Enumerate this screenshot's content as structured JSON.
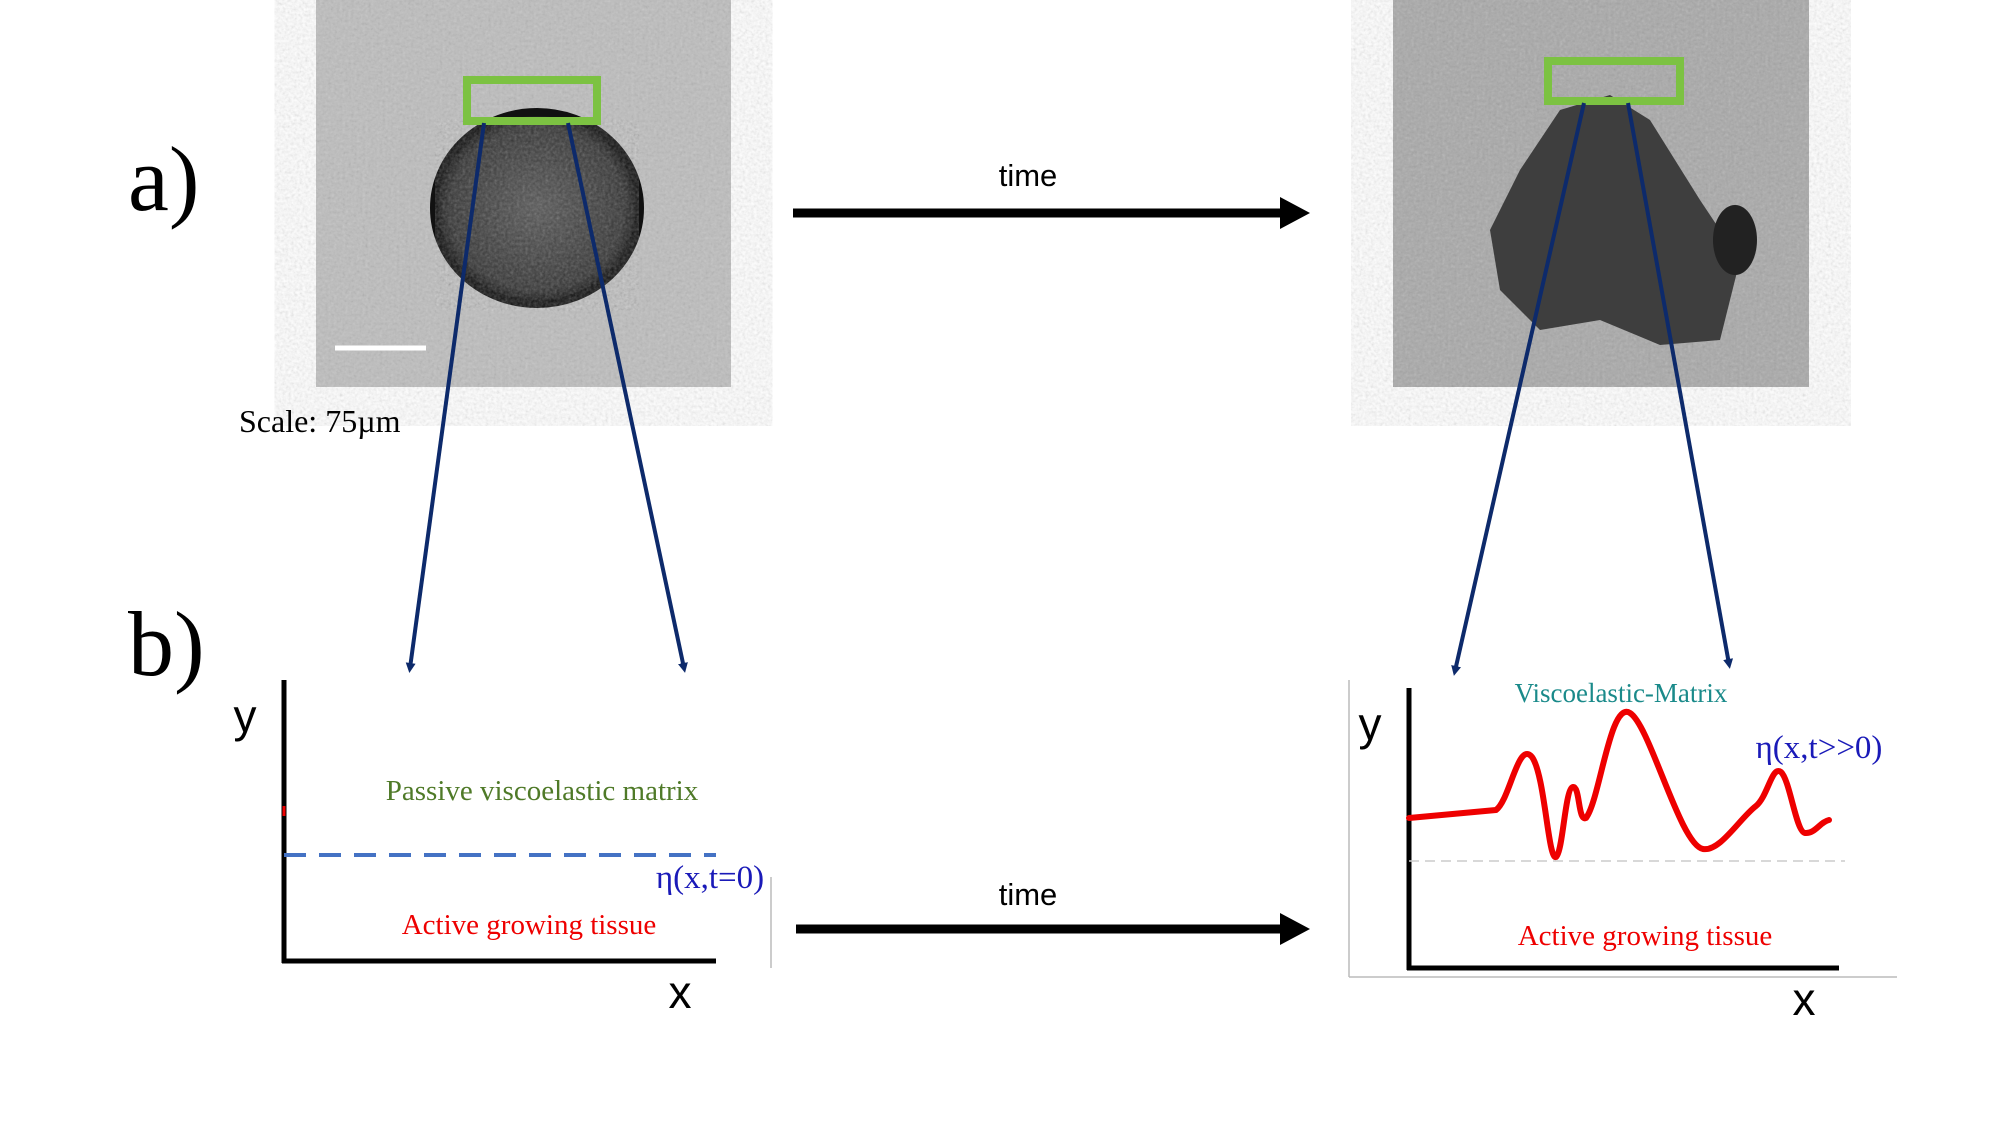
{
  "panels": {
    "a": {
      "label": "a)",
      "scale_text": "Scale: 75µm",
      "arrow_label": "time"
    },
    "b": {
      "label": "b)",
      "arrow_label": "time",
      "left_plot": {
        "y_axis": "y",
        "x_axis": "x",
        "upper_region": "Passive viscoelastic matrix",
        "interface": "η(x,t=0)",
        "lower_region": "Active growing tissue"
      },
      "right_plot": {
        "y_axis": "y",
        "x_axis": "x",
        "upper_region": "Viscoelastic-Matrix",
        "interface": "η(x,t>>0)",
        "lower_region": "Active growing tissue"
      }
    }
  }
}
